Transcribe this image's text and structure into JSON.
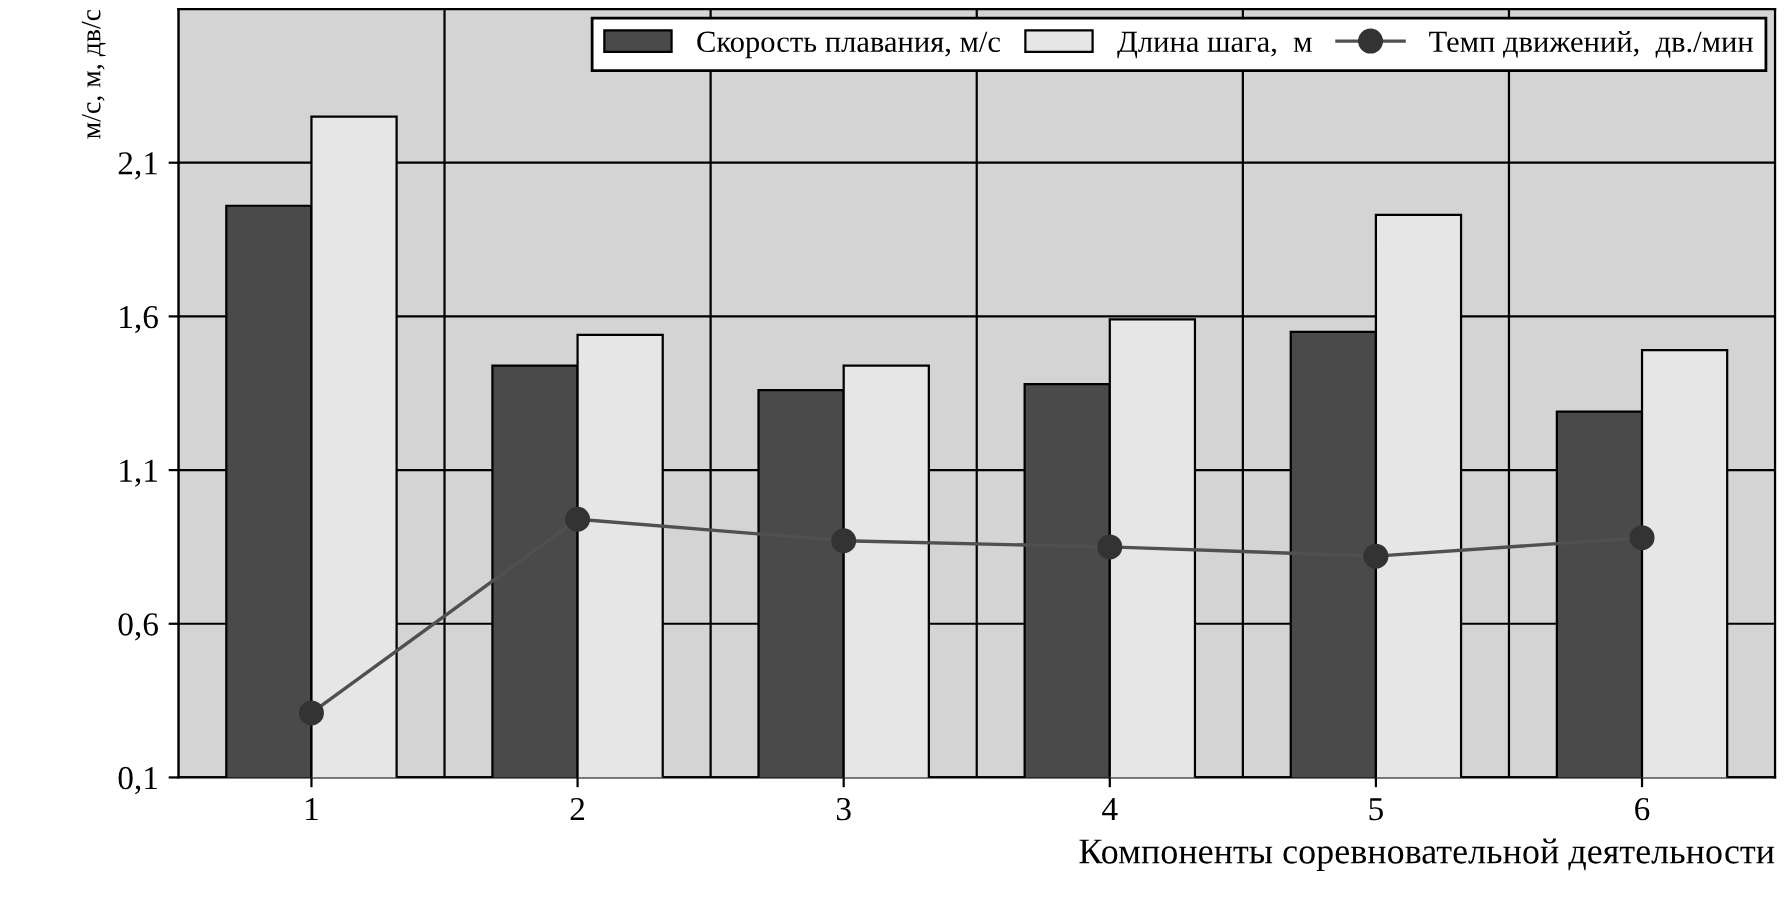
{
  "chart_data": {
    "type": "bar",
    "xlabel": "Компоненты соревновательной деятельности",
    "ylabel": "м/с, м, дв/с",
    "categories": [
      "1",
      "2",
      "3",
      "4",
      "5",
      "6"
    ],
    "series": [
      {
        "name": "Скорость плавания, м/с",
        "color": "#4a4a4a",
        "values": [
          1.96,
          1.44,
          1.36,
          1.38,
          1.55,
          1.29
        ]
      },
      {
        "name": "Длина шага,  м",
        "color": "#e6e6e6",
        "values": [
          2.25,
          1.54,
          1.44,
          1.59,
          1.93,
          1.49
        ]
      },
      {
        "name": "Темп движений,  дв./мин",
        "type": "line",
        "color": "#505050",
        "marker": "circle",
        "values": [
          0.31,
          0.94,
          0.87,
          0.85,
          0.82,
          0.88
        ]
      }
    ],
    "ylim": [
      0.1,
      2.6
    ],
    "yticks": [
      {
        "value": 0.1,
        "label": "0,1"
      },
      {
        "value": 0.6,
        "label": "0,6"
      },
      {
        "value": 1.1,
        "label": "1,1"
      },
      {
        "value": 1.6,
        "label": "1,6"
      },
      {
        "value": 2.1,
        "label": "2,1"
      }
    ],
    "grid": true,
    "legend": "top right"
  }
}
